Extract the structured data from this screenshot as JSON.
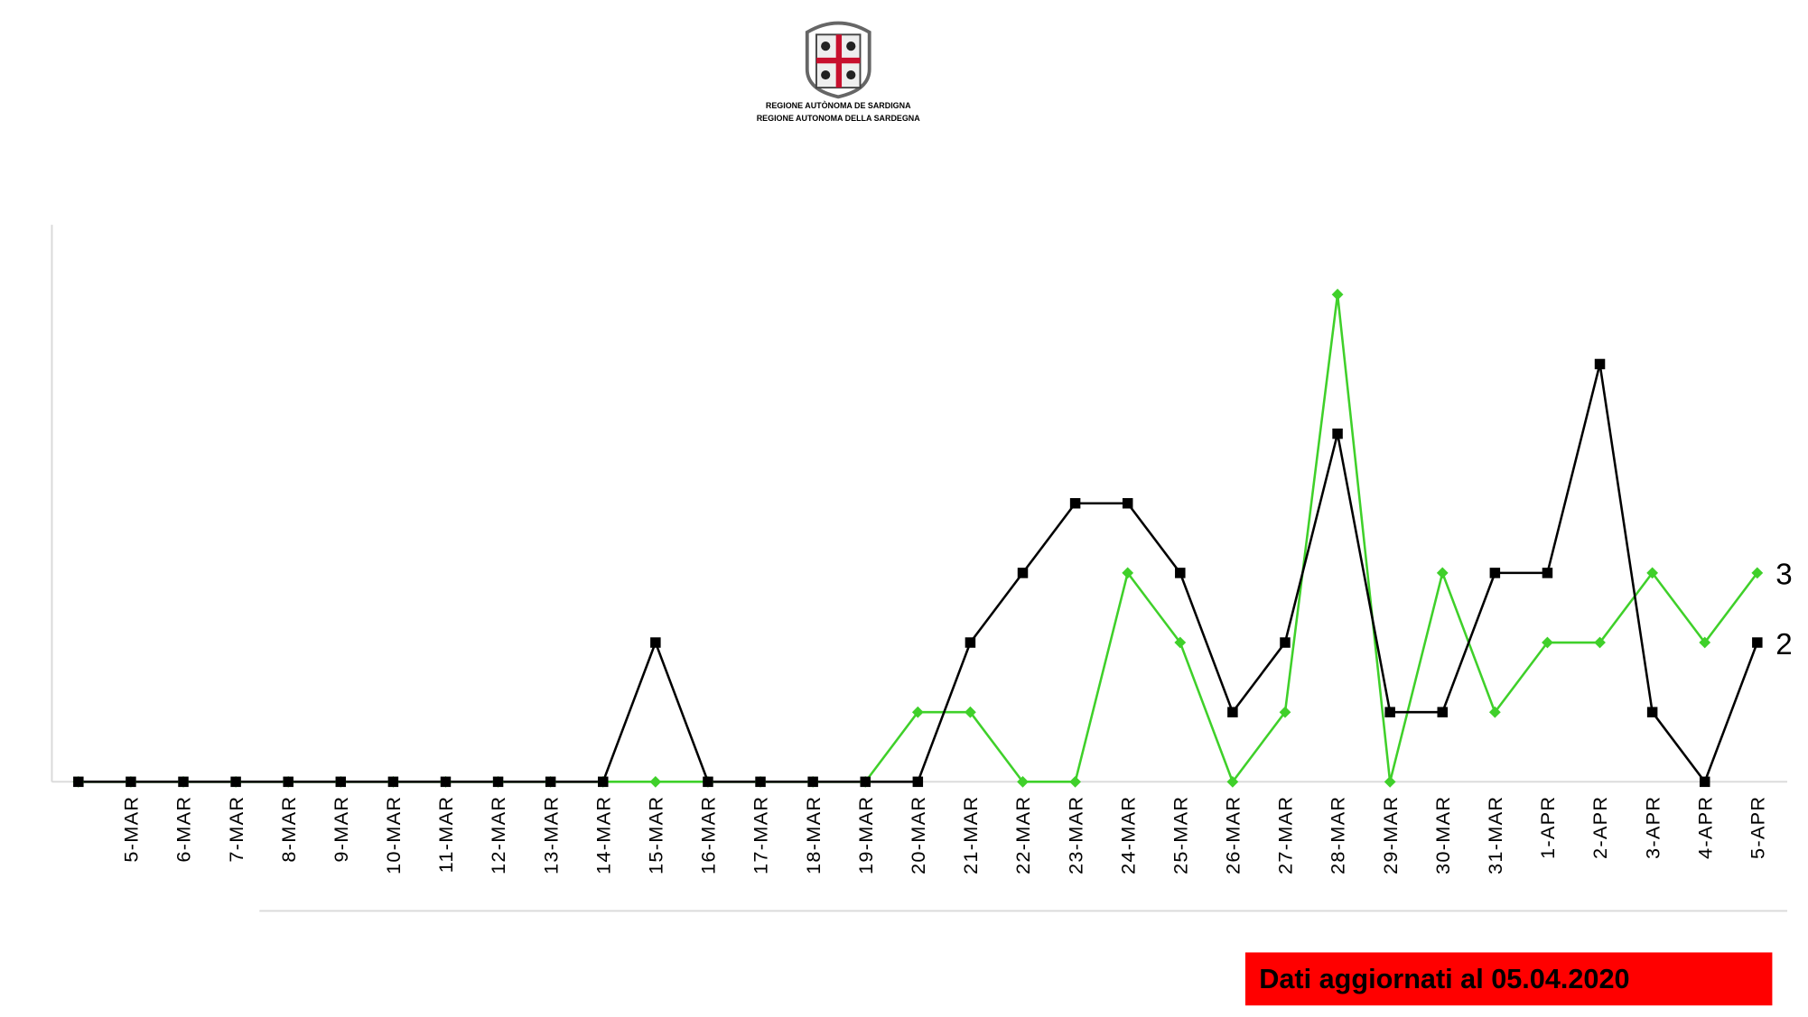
{
  "header": {
    "logo_line1": "REGIONE AUTÒNOMA DE SARDIGNA",
    "logo_line2": "REGIONE AUTONOMA DELLA SARDEGNA"
  },
  "footer": {
    "note": "Dati aggiornati al 05.04.2020"
  },
  "chart_data": {
    "type": "line",
    "categories": [
      null,
      "5-MAR",
      "6-MAR",
      "7-MAR",
      "8-MAR",
      "9-MAR",
      "10-MAR",
      "11-MAR",
      "12-MAR",
      "13-MAR",
      "14-MAR",
      "15-MAR",
      "16-MAR",
      "17-MAR",
      "18-MAR",
      "19-MAR",
      "20-MAR",
      "21-MAR",
      "22-MAR",
      "23-MAR",
      "24-MAR",
      "25-MAR",
      "26-MAR",
      "27-MAR",
      "28-MAR",
      "29-MAR",
      "30-MAR",
      "31-MAR",
      "1-APR",
      "2-APR",
      "3-APR",
      "4-APR",
      "5-APR"
    ],
    "series": [
      {
        "color": "#3fd02a",
        "marker": "diamond",
        "values": [
          0,
          0,
          0,
          0,
          0,
          0,
          0,
          0,
          0,
          0,
          0,
          0,
          0,
          0,
          0,
          0,
          1,
          1,
          0,
          0,
          3,
          2,
          0,
          1,
          7,
          0,
          3,
          1,
          2,
          2,
          3,
          2,
          3
        ]
      },
      {
        "color": "#000000",
        "marker": "square",
        "values": [
          0,
          0,
          0,
          0,
          0,
          0,
          0,
          0,
          0,
          0,
          0,
          2,
          0,
          0,
          0,
          0,
          0,
          2,
          3,
          4,
          4,
          3,
          1,
          2,
          5,
          1,
          1,
          3,
          3,
          6,
          1,
          0,
          2
        ]
      }
    ],
    "ylim": [
      0,
      8
    ]
  }
}
